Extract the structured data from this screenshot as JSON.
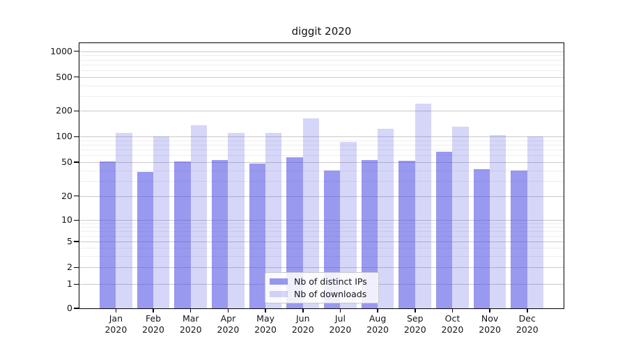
{
  "chart_data": {
    "type": "bar",
    "title": "diggit 2020",
    "categories": [
      "Jan 2020",
      "Feb 2020",
      "Mar 2020",
      "Apr 2020",
      "May 2020",
      "Jun 2020",
      "Jul 2020",
      "Aug 2020",
      "Sep 2020",
      "Oct 2020",
      "Nov 2020",
      "Dec 2020"
    ],
    "series": [
      {
        "name": "Nb of distinct IPs",
        "values": [
          51,
          38,
          51,
          53,
          48,
          57,
          40,
          53,
          52,
          66,
          41,
          40
        ],
        "color": "rgba(70,70,225,0.55)"
      },
      {
        "name": "Nb of downloads",
        "values": [
          110,
          100,
          137,
          110,
          110,
          165,
          86,
          124,
          245,
          132,
          105,
          100
        ],
        "color": "rgba(70,70,225,0.22)"
      }
    ],
    "xlabel": "",
    "ylabel": "",
    "y_scale": "symlog",
    "y_ticks": [
      0,
      1,
      2,
      5,
      10,
      20,
      50,
      100,
      200,
      500,
      1000
    ],
    "y_minor_ticks": [
      3,
      4,
      6,
      7,
      8,
      9,
      30,
      40,
      60,
      70,
      80,
      90,
      300,
      400,
      600,
      700,
      800,
      900
    ],
    "ylim": [
      0,
      1250
    ],
    "grid": true,
    "legend_position": "lower center inside",
    "colors": {
      "grid_major": "#c9c9c9",
      "grid_minor": "#ededed",
      "axis": "#000000",
      "text": "#151515",
      "background": "#ffffff"
    }
  }
}
